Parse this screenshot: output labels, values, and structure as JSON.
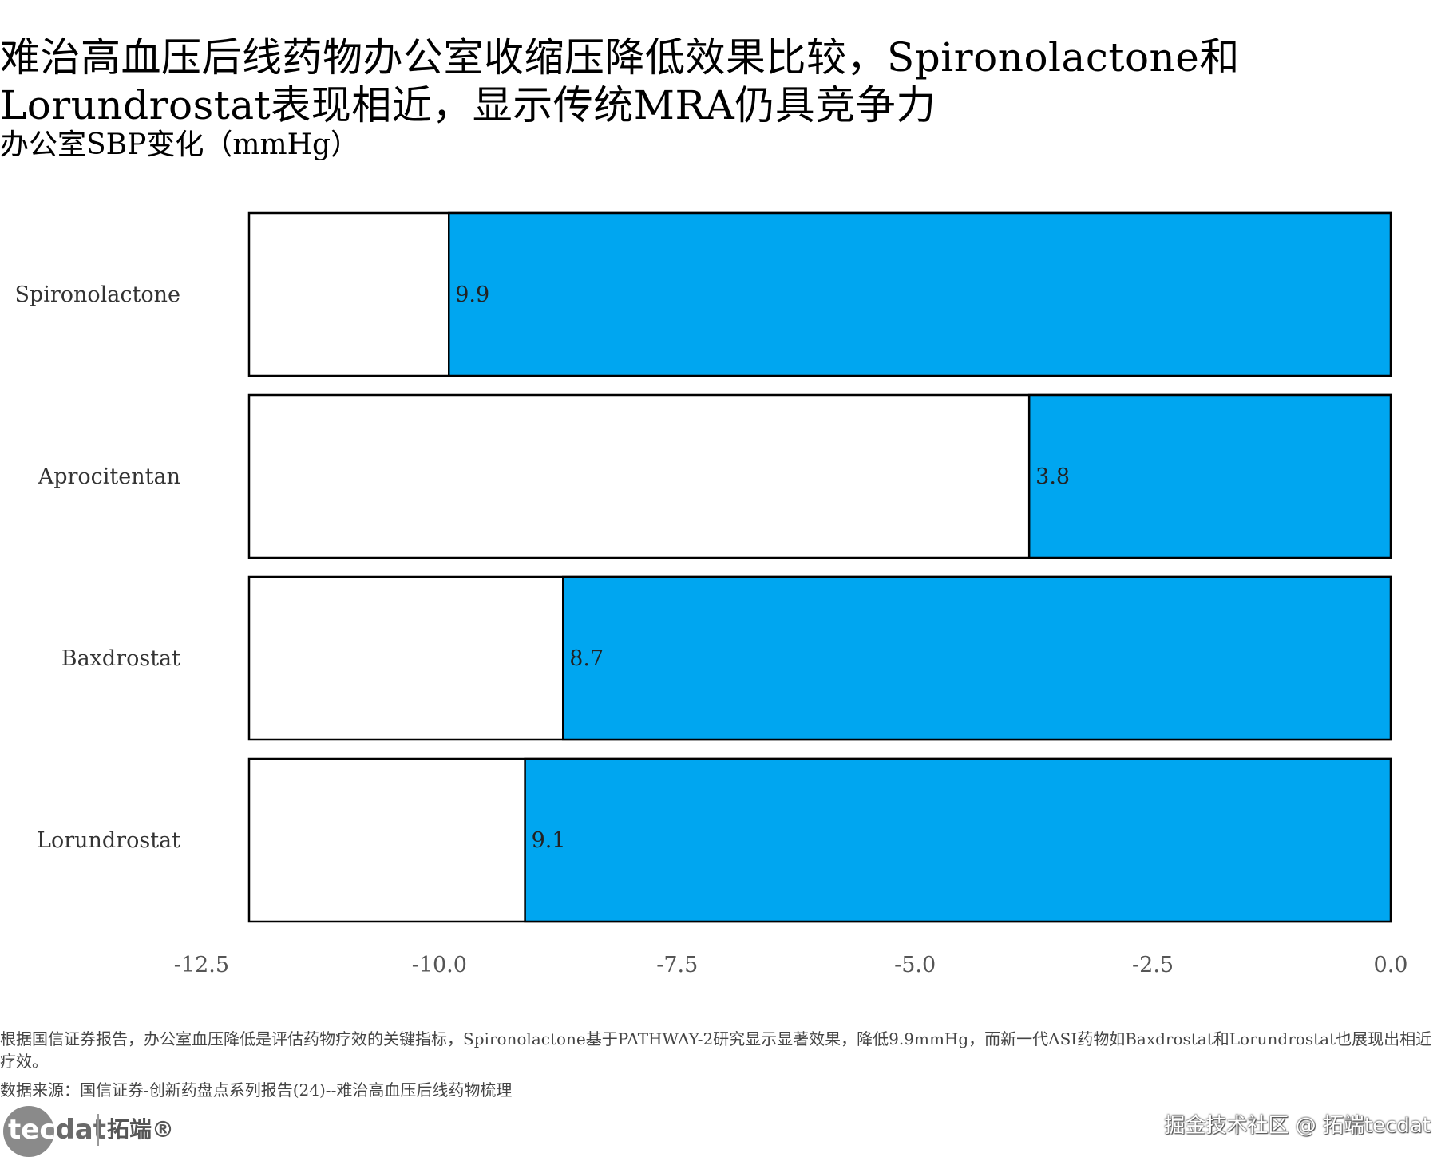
{
  "title": "难治高血压后线药物办公室收缩压降低效果比较，Spironolactone和Lorundrostat表现相近，显示传统MRA仍具竞争力",
  "subtitle": "办公室SBP变化（mmHg）",
  "chart_data": {
    "type": "bar",
    "orientation": "horizontal",
    "categories": [
      "Spironolactone",
      "Aprocitentan",
      "Baxdrostat",
      "Lorundrostat"
    ],
    "values": [
      -9.9,
      -3.8,
      -8.7,
      -9.1
    ],
    "data_labels": [
      "9.9",
      "3.8",
      "8.7",
      "9.1"
    ],
    "xlim": [
      -12.0,
      0.0
    ],
    "xticks": [
      -12.5,
      -10.0,
      -7.5,
      -5.0,
      -2.5,
      0.0
    ],
    "xtick_labels": [
      "-12.5",
      "-10.0",
      "-7.5",
      "-5.0",
      "-2.5",
      "0.0"
    ],
    "bar_color": "#00a6f0",
    "background_bar_color": "#ffffff",
    "edge_color": "#000000",
    "grid": false,
    "legend": "none"
  },
  "note": "根据国信证券报告，办公室血压降低是评估药物疗效的关键指标，Spironolactone基于PATHWAY-2研究显示显著效果，降低9.9mmHg，而新一代ASI药物如Baxdrostat和Lorundrostat也展现出相近疗效。",
  "source": "数据来源：国信证券-创新药盘点系列报告(24)--难治高血压后线药物梳理",
  "logo": {
    "word_part1": "tec",
    "word_part2": "dat",
    "cn": "拓端®"
  },
  "watermark": "掘金技术社区 @ 拓端tecdat"
}
